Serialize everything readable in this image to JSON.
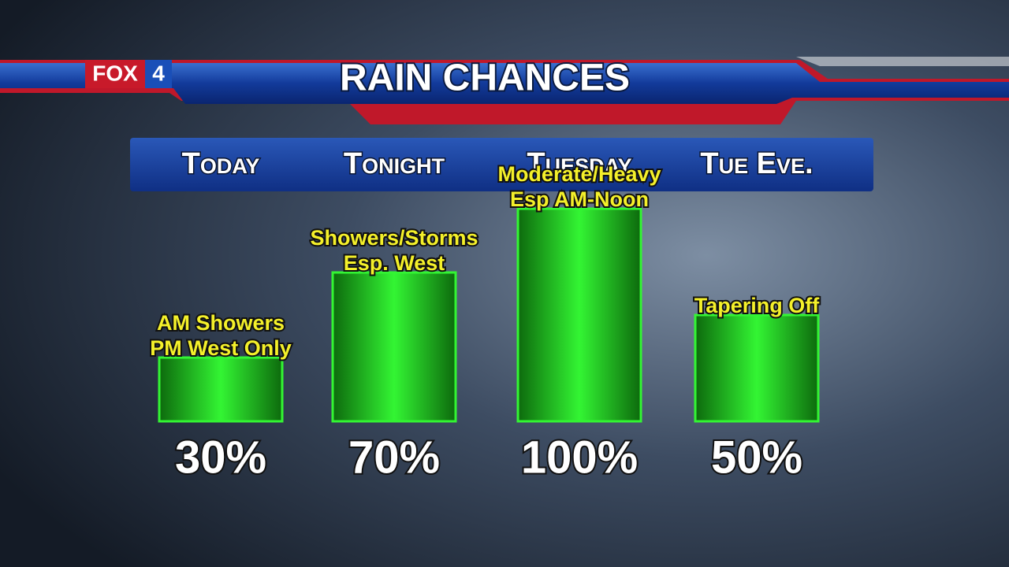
{
  "chart_data": {
    "type": "bar",
    "title": "RAIN CHANCES",
    "logo": [
      "FOX",
      "4"
    ],
    "categories": [
      "Today",
      "Tonight",
      "Tuesday",
      "Tue Eve."
    ],
    "values": [
      30,
      70,
      100,
      50
    ],
    "value_labels": [
      "30%",
      "70%",
      "100%",
      "50%"
    ],
    "annotations": [
      [
        "AM Showers",
        "PM West Only"
      ],
      [
        "Showers/Storms",
        "Esp. West"
      ],
      [
        "Moderate/Heavy",
        "Esp AM-Noon"
      ],
      [
        "Tapering Off"
      ]
    ],
    "color": "#33f533"
  }
}
